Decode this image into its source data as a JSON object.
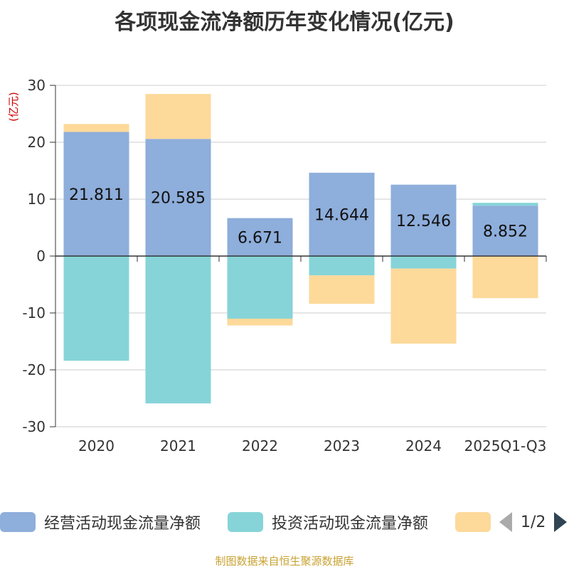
{
  "chart_data": {
    "type": "bar",
    "stacked": true,
    "title": "各项现金流净额历年变化情况(亿元)",
    "unit_label": "(亿元)",
    "categories": [
      "2020",
      "2021",
      "2022",
      "2023",
      "2024",
      "2025Q1-Q3"
    ],
    "ylim": [
      -30,
      30
    ],
    "yticks": [
      30,
      20,
      10,
      0,
      -10,
      -20,
      -30
    ],
    "series": [
      {
        "name": "经营活动现金流量净额",
        "color": "#8eaedb",
        "values": [
          21.811,
          20.585,
          6.671,
          14.644,
          12.546,
          8.852
        ]
      },
      {
        "name": "投资活动现金流量净额",
        "color": "#86d4d8",
        "values": [
          -18.4,
          -25.9,
          -11.0,
          -3.4,
          -2.2,
          0.5
        ]
      },
      {
        "name": "",
        "color": "#fdd99a",
        "values": [
          1.4,
          7.9,
          -1.2,
          -5.0,
          -13.2,
          -7.4
        ]
      }
    ],
    "data_labels": [
      "21.811",
      "20.585",
      "6.671",
      "14.644",
      "12.546",
      "8.852"
    ],
    "grid": true,
    "legend_position": "bottom"
  },
  "legend": {
    "page": "1/2"
  },
  "footer": "制图数据来自恒生聚源数据库"
}
